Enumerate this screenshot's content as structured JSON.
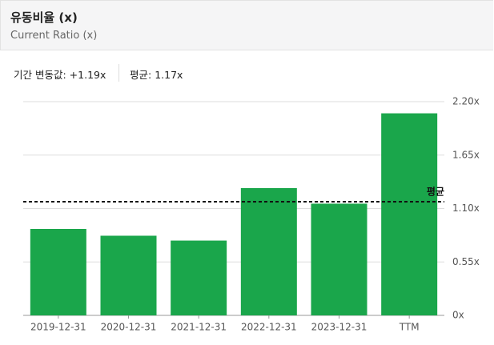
{
  "header": {
    "title": "유동비율 (x)",
    "subtitle": "Current Ratio (x)"
  },
  "stats": [
    {
      "label": "기간 변동값:",
      "value": "+1.19x"
    },
    {
      "label": "평균:",
      "value": "1.17x"
    }
  ],
  "chart_data": {
    "type": "bar",
    "color": "#1aa64b",
    "categories": [
      "2019-12-31",
      "2020-12-31",
      "2021-12-31",
      "2022-12-31",
      "2023-12-31",
      "TTM"
    ],
    "values": [
      0.89,
      0.82,
      0.77,
      1.31,
      1.15,
      2.08
    ],
    "ylim": [
      0,
      2.2
    ],
    "yticks": [
      {
        "value": 0,
        "label": "0x"
      },
      {
        "value": 0.55,
        "label": "0.55x"
      },
      {
        "value": 1.1,
        "label": "1.10x"
      },
      {
        "value": 1.65,
        "label": "1.65x"
      },
      {
        "value": 2.2,
        "label": "2.20x"
      }
    ],
    "grid": true,
    "average": {
      "value": 1.17,
      "label": "평균"
    }
  }
}
